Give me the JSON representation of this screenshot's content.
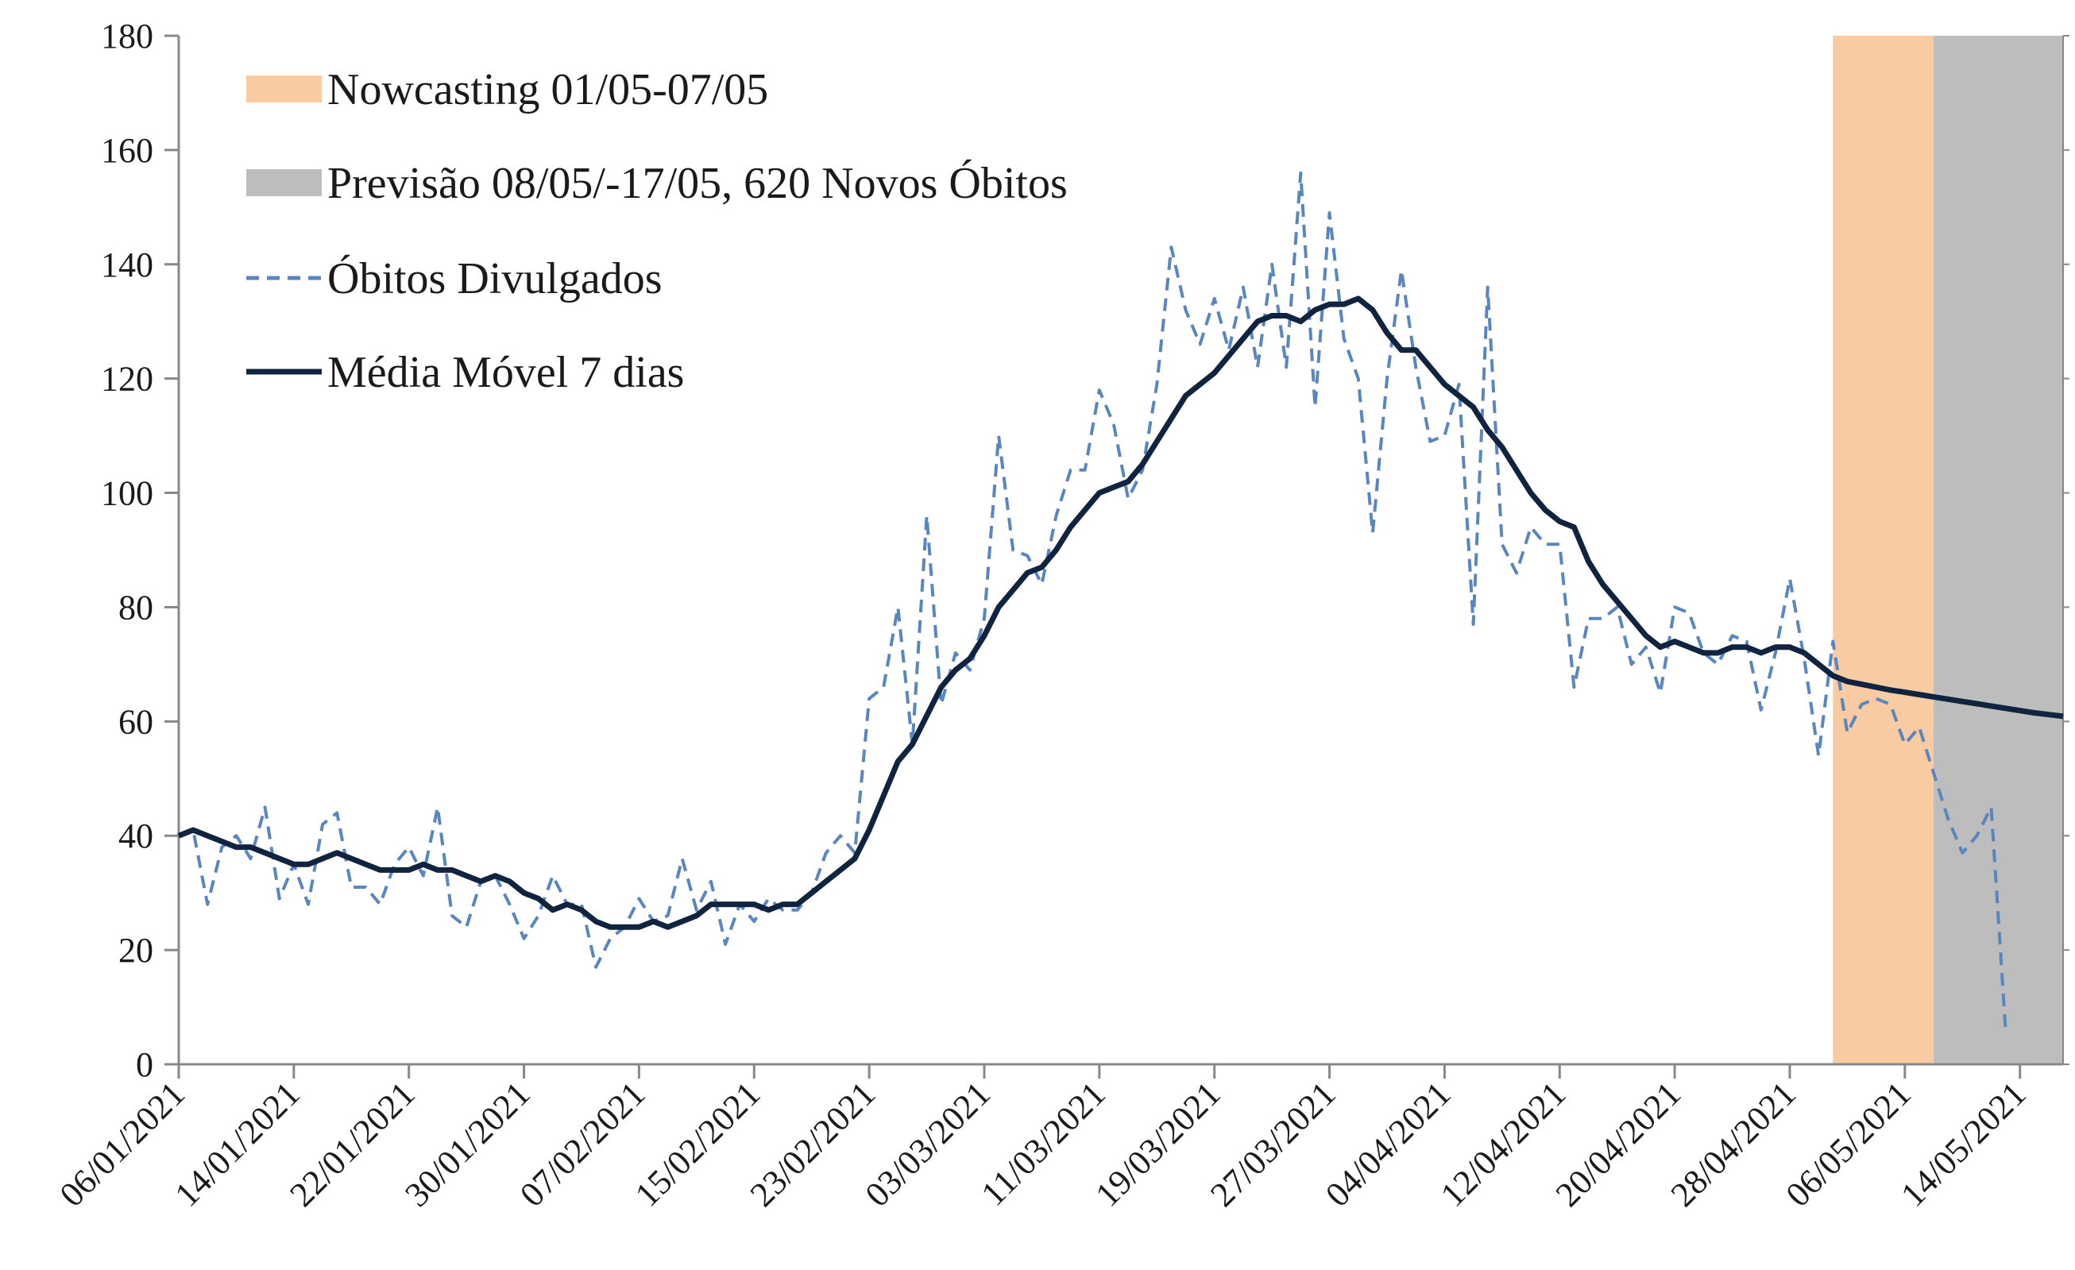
{
  "chart_data": {
    "type": "line",
    "title": "",
    "xlabel": "",
    "ylabel": "",
    "ylim": [
      0,
      180
    ],
    "yticks": [
      0,
      20,
      40,
      60,
      80,
      100,
      120,
      140,
      160,
      180
    ],
    "x_start": "06/01/2021",
    "x_end": "17/05/2021",
    "xtick_labels": [
      "06/01/2021",
      "14/01/2021",
      "22/01/2021",
      "30/01/2021",
      "07/02/2021",
      "15/02/2021",
      "23/02/2021",
      "03/03/2021",
      "11/03/2021",
      "19/03/2021",
      "27/03/2021",
      "04/04/2021",
      "12/04/2021",
      "20/04/2021",
      "28/04/2021",
      "06/05/2021",
      "14/05/2021"
    ],
    "grid": false,
    "legend_position": "top-left",
    "bands": [
      {
        "label": "Nowcasting 01/05-07/05",
        "start": "01/05/2021",
        "end": "08/05/2021",
        "color": "#f8cba2"
      },
      {
        "label": "Previsão 08/05/-17/05,  620 Novos Óbitos",
        "start": "08/05/2021",
        "end": "17/05/2021",
        "color": "#bdbdbd"
      }
    ],
    "series": [
      {
        "name": "Óbitos Divulgados",
        "style": "dashed",
        "color": "#5a86c0",
        "values": [
          40,
          41,
          28,
          38,
          40,
          36,
          45,
          29,
          35,
          28,
          42,
          44,
          31,
          31,
          28,
          35,
          38,
          33,
          45,
          26,
          24,
          32,
          33,
          28,
          22,
          26,
          33,
          28,
          28,
          17,
          22,
          24,
          29,
          25,
          26,
          36,
          27,
          32,
          21,
          28,
          25,
          29,
          27,
          27,
          30,
          37,
          40,
          37,
          64,
          66,
          80,
          56,
          96,
          63,
          72,
          69,
          78,
          110,
          90,
          89,
          84,
          96,
          104,
          104,
          118,
          112,
          99,
          104,
          119,
          143,
          132,
          126,
          134,
          125,
          136,
          122,
          140,
          122,
          156,
          115,
          149,
          127,
          120,
          93,
          120,
          139,
          122,
          109,
          110,
          119,
          77,
          136,
          91,
          86,
          94,
          91,
          91,
          66,
          78,
          78,
          80,
          70,
          73,
          65,
          80,
          79,
          72,
          70,
          75,
          74,
          62,
          72,
          85,
          71,
          54,
          74,
          58,
          63,
          64,
          63,
          56,
          59,
          51,
          43,
          37,
          40,
          45,
          6
        ]
      },
      {
        "name": "Média Móvel 7 dias",
        "style": "solid",
        "color": "#10243f",
        "values": [
          40,
          41,
          40,
          39,
          38,
          38,
          37,
          36,
          35,
          35,
          36,
          37,
          36,
          35,
          34,
          34,
          34,
          35,
          34,
          34,
          33,
          32,
          33,
          32,
          30,
          29,
          27,
          28,
          27,
          25,
          24,
          24,
          24,
          25,
          24,
          25,
          26,
          28,
          28,
          28,
          28,
          27,
          28,
          28,
          30,
          32,
          34,
          36,
          41,
          47,
          53,
          56,
          61,
          66,
          69,
          71,
          75,
          80,
          83,
          86,
          87,
          90,
          94,
          97,
          100,
          101,
          102,
          105,
          109,
          113,
          117,
          119,
          121,
          124,
          127,
          130,
          131,
          131,
          130,
          132,
          133,
          133,
          134,
          132,
          128,
          125,
          125,
          122,
          119,
          117,
          115,
          111,
          108,
          104,
          100,
          97,
          95,
          94,
          88,
          84,
          81,
          78,
          75,
          73,
          74,
          73,
          72,
          72,
          73,
          73,
          72,
          73,
          73,
          72,
          70,
          68,
          67,
          66.5,
          66,
          65.5,
          65.1,
          64.7,
          64.3,
          63.9,
          63.5,
          63.1,
          62.7,
          62.3,
          61.9,
          61.5,
          61.2,
          60.9
        ]
      }
    ]
  },
  "legend": [
    {
      "label": "Nowcasting 01/05-07/05",
      "kind": "swatch",
      "color": "#f8cba2"
    },
    {
      "label": "Previsão 08/05/-17/05,  620 Novos Óbitos",
      "kind": "swatch",
      "color": "#bdbdbd"
    },
    {
      "label": "Óbitos Divulgados",
      "kind": "dashed",
      "color": "#5a86c0"
    },
    {
      "label": "Média Móvel 7 dias",
      "kind": "solid",
      "color": "#10243f"
    }
  ]
}
